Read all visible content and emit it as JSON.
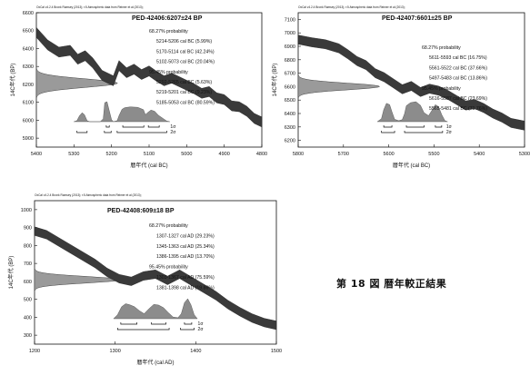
{
  "figure_caption": "第 18 図 暦年較正結果",
  "chart_data": [
    {
      "type": "area",
      "panel": "left",
      "header": "OxCal v4.2.4 Bronk Ramsey (2013); r:5 Atmospheric data from Reimer et al (2013);",
      "title": "PED-42406:6207±24 BP",
      "xlabel": "暦年代 (cal BC)",
      "ylabel": "14C年代 (BP)",
      "x_reversed": true,
      "xlim": [
        5400,
        4800
      ],
      "ylim": [
        5850,
        6600
      ],
      "xticks": [
        "5400",
        "5300",
        "5200",
        "5100",
        "5000",
        "4900",
        "4800"
      ],
      "yticks": [
        "5900",
        "6000",
        "6100",
        "6200",
        "6300",
        "6400",
        "6500",
        "6600"
      ],
      "sample": {
        "mean": 6207,
        "sd": 24
      },
      "calibration_curve": {
        "x": [
          5400,
          5370,
          5340,
          5310,
          5290,
          5270,
          5250,
          5225,
          5210,
          5195,
          5180,
          5160,
          5140,
          5120,
          5100,
          5080,
          5060,
          5040,
          5020,
          5000,
          4980,
          4960,
          4940,
          4920,
          4900,
          4880,
          4860,
          4840,
          4820,
          4800
        ],
        "y": [
          6490,
          6420,
          6380,
          6390,
          6340,
          6360,
          6320,
          6250,
          6235,
          6220,
          6305,
          6265,
          6285,
          6255,
          6275,
          6245,
          6220,
          6235,
          6215,
          6195,
          6175,
          6150,
          6160,
          6125,
          6115,
          6080,
          6075,
          6050,
          6010,
          5990
        ],
        "band_width": 28
      },
      "probability_text": [
        "68.27% probability",
        "5214-5206 cal BC (5.99%)",
        "5170-5114 cal BC (42.24%)",
        "5102-5073 cal BC (20.04%)",
        "95.45% probability",
        "5292-5265 cal BC (5.63%)",
        "5219-5201 cal BC (9.23%)",
        "5185-5053 cal BC (80.59%)"
      ],
      "posterior": {
        "x": [
          5300,
          5292,
          5285,
          5278,
          5272,
          5265,
          5258,
          5230,
          5222,
          5218,
          5212,
          5206,
          5200,
          5195,
          5185,
          5180,
          5172,
          5165,
          5150,
          5130,
          5115,
          5110,
          5104,
          5095,
          5085,
          5075,
          5062,
          5053,
          5045
        ],
        "y": [
          0,
          0.05,
          0.3,
          0.45,
          0.35,
          0.05,
          0,
          0,
          0.15,
          0.95,
          1.0,
          0.55,
          0.1,
          0,
          0.05,
          0.3,
          0.62,
          0.7,
          0.74,
          0.72,
          0.6,
          0.35,
          0.45,
          0.58,
          0.52,
          0.32,
          0.15,
          0.03,
          0
        ]
      },
      "range_labels": [
        "1σ",
        "2σ"
      ],
      "ranges_1sigma": [
        [
          5214,
          5206
        ],
        [
          5170,
          5114
        ],
        [
          5102,
          5073
        ]
      ],
      "ranges_2sigma": [
        [
          5292,
          5265
        ],
        [
          5219,
          5201
        ],
        [
          5185,
          5053
        ]
      ]
    },
    {
      "type": "area",
      "panel": "right",
      "header": "OxCal v4.2.4 Bronk Ramsey (2013); r:5 Atmospheric data from Reimer et al (2013);",
      "title": "PED-42407:6601±25 BP",
      "xlabel": "暦年代 (cal BC)",
      "ylabel": "14C年代 (BP)",
      "x_reversed": true,
      "xlim": [
        5800,
        5300
      ],
      "ylim": [
        6150,
        7150
      ],
      "xticks": [
        "5800",
        "5700",
        "5600",
        "5500",
        "5400",
        "5300"
      ],
      "yticks": [
        "6200",
        "6300",
        "6400",
        "6500",
        "6600",
        "6700",
        "6800",
        "6900",
        "7000",
        "7100"
      ],
      "sample": {
        "mean": 6601,
        "sd": 25
      },
      "calibration_curve": {
        "x": [
          5800,
          5770,
          5740,
          5710,
          5690,
          5670,
          5650,
          5630,
          5610,
          5590,
          5570,
          5550,
          5530,
          5510,
          5490,
          5470,
          5450,
          5430,
          5410,
          5390,
          5370,
          5350,
          5330,
          5300
        ],
        "y": [
          6950,
          6930,
          6915,
          6885,
          6840,
          6790,
          6760,
          6700,
          6670,
          6625,
          6580,
          6605,
          6560,
          6585,
          6570,
          6540,
          6500,
          6460,
          6470,
          6440,
          6400,
          6370,
          6330,
          6310
        ],
        "band_width": 34
      },
      "probability_text": [
        "68.27% probability",
        "5611-5593 cal BC (16.75%)",
        "5561-5522 cal BC (37.66%)",
        "5497-5483 cal BC (13.86%)",
        "95.45% probability",
        "5616-5587 cal BC (23.69%)",
        "5565-5481 cal BC (71.76%)"
      ],
      "posterior": {
        "x": [
          5625,
          5616,
          5611,
          5605,
          5598,
          5593,
          5587,
          5578,
          5570,
          5565,
          5561,
          5552,
          5540,
          5530,
          5522,
          5512,
          5505,
          5497,
          5490,
          5483,
          5476,
          5470
        ],
        "y": [
          0,
          0.15,
          0.6,
          0.92,
          0.85,
          0.5,
          0.12,
          0.05,
          0.1,
          0.4,
          0.8,
          0.95,
          1.0,
          0.82,
          0.45,
          0.3,
          0.55,
          0.85,
          0.75,
          0.35,
          0.05,
          0
        ]
      },
      "range_labels": [
        "1σ",
        "2σ"
      ],
      "ranges_1sigma": [
        [
          5611,
          5593
        ],
        [
          5561,
          5522
        ],
        [
          5497,
          5483
        ]
      ],
      "ranges_2sigma": [
        [
          5616,
          5587
        ],
        [
          5565,
          5481
        ]
      ]
    },
    {
      "type": "area",
      "panel": "bottom",
      "header": "OxCal v4.2.4 Bronk Ramsey (2013); r:5 Atmospheric data from Reimer et al (2013);",
      "title": "PED-42408:609±18 BP",
      "xlabel": "暦年代 (cal AD)",
      "ylabel": "14C年代 (BP)",
      "x_reversed": false,
      "xlim": [
        1200,
        1500
      ],
      "ylim": [
        250,
        1050
      ],
      "xticks": [
        "1200",
        "1300",
        "1400",
        "1500"
      ],
      "yticks": [
        "300",
        "400",
        "500",
        "600",
        "700",
        "800",
        "900",
        "1000"
      ],
      "sample": {
        "mean": 609,
        "sd": 18
      },
      "calibration_curve": {
        "x": [
          1200,
          1215,
          1230,
          1245,
          1260,
          1275,
          1290,
          1305,
          1320,
          1335,
          1350,
          1365,
          1380,
          1395,
          1410,
          1425,
          1440,
          1455,
          1470,
          1485,
          1500
        ],
        "y": [
          880,
          860,
          820,
          780,
          740,
          700,
          650,
          615,
          600,
          630,
          640,
          605,
          640,
          600,
          560,
          520,
          470,
          430,
          395,
          370,
          355
        ],
        "band_width": 24
      },
      "probability_text": [
        "68.27% probability",
        "1307-1327 cal AD (29.23%)",
        "1345-1363 cal AD (25.34%)",
        "1386-1395 cal AD (13.70%)",
        "95.45% probability",
        "1303-1367 cal AD (75.59%)",
        "1381-1398 cal AD (19.86%)"
      ],
      "posterior": {
        "x": [
          1298,
          1303,
          1308,
          1313,
          1318,
          1324,
          1330,
          1336,
          1342,
          1348,
          1354,
          1360,
          1366,
          1372,
          1378,
          1382,
          1386,
          1390,
          1394,
          1398,
          1402
        ],
        "y": [
          0,
          0.2,
          0.6,
          0.75,
          0.7,
          0.6,
          0.4,
          0.25,
          0.5,
          0.72,
          0.68,
          0.55,
          0.3,
          0.08,
          0.05,
          0.25,
          0.8,
          1.0,
          0.7,
          0.2,
          0
        ]
      },
      "range_labels": [
        "1σ",
        "2σ"
      ],
      "ranges_1sigma": [
        [
          1307,
          1327
        ],
        [
          1345,
          1363
        ],
        [
          1386,
          1395
        ]
      ],
      "ranges_2sigma": [
        [
          1303,
          1367
        ],
        [
          1381,
          1398
        ]
      ]
    }
  ]
}
